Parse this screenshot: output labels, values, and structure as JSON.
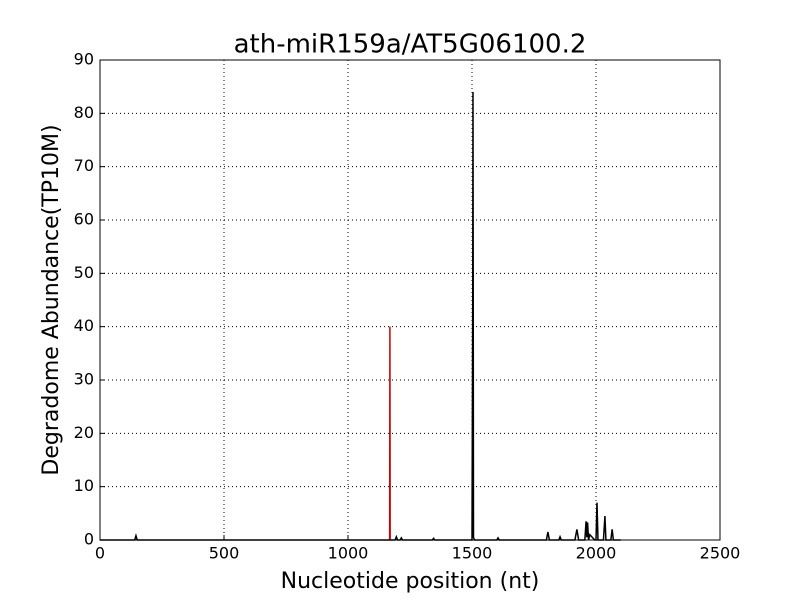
{
  "chart_data": {
    "type": "line",
    "title": "ath-miR159a/AT5G06100.2",
    "x_label": "Nucleotide position (nt)",
    "y_label": "Degradome Abundance(TP10M)",
    "xlim": [
      0,
      2500
    ],
    "xticks": [
      0,
      500,
      1000,
      1500,
      2000,
      2500
    ],
    "ylim": [
      0,
      90
    ],
    "yticks": [
      0,
      10,
      20,
      30,
      40,
      50,
      60,
      70,
      80,
      90
    ],
    "grid": true,
    "series": [
      {
        "color": "#000000",
        "x": [
          0,
          140,
          145,
          150,
          1180,
          1190,
          1195,
          1200,
          1210,
          1215,
          1220,
          1340,
          1345,
          1350,
          1495,
          1500,
          1503,
          1504,
          1506,
          1510,
          1600,
          1605,
          1610,
          1800,
          1806,
          1812,
          1850,
          1855,
          1860,
          1915,
          1923,
          1930,
          1955,
          1960,
          1963,
          1966,
          1970,
          1975,
          1995,
          2000,
          2004,
          2008,
          2030,
          2036,
          2040,
          2060,
          2065,
          2070,
          2100
        ],
        "values": [
          0,
          0,
          0.8,
          0,
          0,
          0,
          0.6,
          0,
          0,
          0.4,
          0,
          0,
          0.3,
          0,
          0,
          0,
          47,
          84,
          0.5,
          0,
          0,
          0.4,
          0,
          0,
          1.5,
          0,
          0,
          0.6,
          0,
          0,
          2,
          0,
          0,
          3.5,
          0.5,
          3.3,
          0,
          1,
          0,
          0,
          7,
          0,
          0,
          4.5,
          0,
          0,
          2,
          0,
          0
        ]
      },
      {
        "color": "#cc0000",
        "x": [
          1168,
          1169,
          1170
        ],
        "values": [
          0,
          40,
          0
        ]
      }
    ]
  }
}
